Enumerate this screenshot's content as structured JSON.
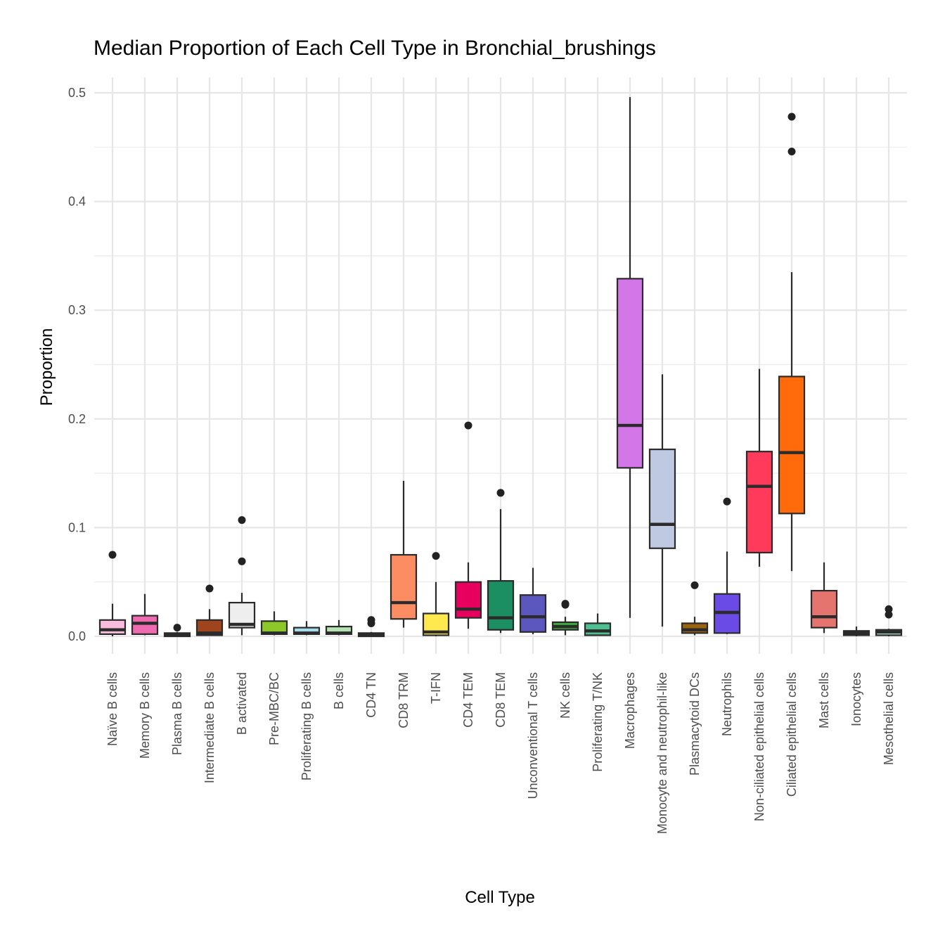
{
  "chart_data": {
    "type": "box",
    "title": "Median Proportion of Each Cell Type in Bronchial_brushings",
    "xlabel": "Cell Type",
    "ylabel": "Proportion",
    "ylim": [
      -0.025,
      0.51
    ],
    "yticks": [
      0.0,
      0.1,
      0.2,
      0.3,
      0.4,
      0.5
    ],
    "ytick_labels": [
      "0.0",
      "0.1",
      "0.2",
      "0.3",
      "0.4",
      "0.5"
    ],
    "grid": true,
    "legend": "none",
    "categories": [
      "Naïve B cells",
      "Memory B cells",
      "Plasma B cells",
      "Intermediate B cells",
      "B activated",
      "Pre-MBC/BC",
      "Proliferating B cells",
      "B cells",
      "CD4 TN",
      "CD8 TRM",
      "T-IFN",
      "CD4 TEM",
      "CD8 TEM",
      "Unconventional T cells",
      "NK cells",
      "Proliferating T/NK",
      "Macrophages",
      "Monocyte and neutrophil-like",
      "Plasmacytoid DCs",
      "Neutrophils",
      "Non-ciliated epithelial cells",
      "Ciliated epithelial cells",
      "Mast cells",
      "Ionocytes",
      "Mesothelial cells"
    ],
    "boxes": [
      {
        "name": "Naïve B cells",
        "low": 0.0,
        "q1": 0.002,
        "median": 0.006,
        "q3": 0.015,
        "high": 0.03,
        "outliers": [
          0.075
        ],
        "color": "#F9BCDD"
      },
      {
        "name": "Memory B cells",
        "low": 0.001,
        "q1": 0.002,
        "median": 0.012,
        "q3": 0.019,
        "high": 0.039,
        "outliers": [],
        "color": "#F06AB0"
      },
      {
        "name": "Plasma B cells",
        "low": 0.0,
        "q1": 0.0,
        "median": 0.001,
        "q3": 0.003,
        "high": 0.004,
        "outliers": [
          0.008
        ],
        "color": "#7A3E9D"
      },
      {
        "name": "Intermediate B cells",
        "low": 0.001,
        "q1": 0.001,
        "median": 0.003,
        "q3": 0.015,
        "high": 0.025,
        "outliers": [
          0.044
        ],
        "color": "#A0441E"
      },
      {
        "name": "B activated",
        "low": 0.001,
        "q1": 0.008,
        "median": 0.011,
        "q3": 0.031,
        "high": 0.04,
        "outliers": [
          0.069,
          0.107
        ],
        "color": "#EEEEEE"
      },
      {
        "name": "Pre-MBC/BC",
        "low": 0.001,
        "q1": 0.002,
        "median": 0.003,
        "q3": 0.014,
        "high": 0.023,
        "outliers": [],
        "color": "#8DC82A"
      },
      {
        "name": "Proliferating B cells",
        "low": 0.001,
        "q1": 0.002,
        "median": 0.003,
        "q3": 0.008,
        "high": 0.014,
        "outliers": [],
        "color": "#A6DCEB"
      },
      {
        "name": "B cells",
        "low": 0.001,
        "q1": 0.002,
        "median": 0.003,
        "q3": 0.009,
        "high": 0.015,
        "outliers": [],
        "color": "#B5E3B1"
      },
      {
        "name": "CD4 TN",
        "low": 0.0,
        "q1": 0.0,
        "median": 0.001,
        "q3": 0.003,
        "high": 0.004,
        "outliers": [
          0.012,
          0.015
        ],
        "color": "#3B3B3B"
      },
      {
        "name": "CD8 TRM",
        "low": 0.008,
        "q1": 0.016,
        "median": 0.031,
        "q3": 0.075,
        "high": 0.143,
        "outliers": [],
        "color": "#FC8D62"
      },
      {
        "name": "T-IFN",
        "low": 0.0,
        "q1": 0.001,
        "median": 0.004,
        "q3": 0.021,
        "high": 0.05,
        "outliers": [
          0.074
        ],
        "color": "#FFE94F"
      },
      {
        "name": "CD4 TEM",
        "low": 0.007,
        "q1": 0.017,
        "median": 0.025,
        "q3": 0.05,
        "high": 0.068,
        "outliers": [
          0.194
        ],
        "color": "#E8005F"
      },
      {
        "name": "CD8 TEM",
        "low": 0.003,
        "q1": 0.006,
        "median": 0.017,
        "q3": 0.051,
        "high": 0.117,
        "outliers": [
          0.132
        ],
        "color": "#1B8E62"
      },
      {
        "name": "Unconventional T cells",
        "low": 0.002,
        "q1": 0.004,
        "median": 0.018,
        "q3": 0.038,
        "high": 0.063,
        "outliers": [],
        "color": "#5B57BE"
      },
      {
        "name": "NK cells",
        "low": 0.001,
        "q1": 0.006,
        "median": 0.009,
        "q3": 0.013,
        "high": 0.018,
        "outliers": [
          0.029,
          0.03
        ],
        "color": "#3BAA3B"
      },
      {
        "name": "Proliferating T/NK",
        "low": 0.001,
        "q1": 0.001,
        "median": 0.005,
        "q3": 0.012,
        "high": 0.021,
        "outliers": [],
        "color": "#4DBF91"
      },
      {
        "name": "Macrophages",
        "low": 0.017,
        "q1": 0.155,
        "median": 0.194,
        "q3": 0.329,
        "high": 0.496,
        "outliers": [],
        "color": "#D276E8"
      },
      {
        "name": "Monocyte and neutrophil-like",
        "low": 0.009,
        "q1": 0.081,
        "median": 0.103,
        "q3": 0.172,
        "high": 0.241,
        "outliers": [],
        "color": "#BFC9E2"
      },
      {
        "name": "Plasmacytoid DCs",
        "low": 0.001,
        "q1": 0.003,
        "median": 0.006,
        "q3": 0.012,
        "high": 0.018,
        "outliers": [
          0.047
        ],
        "color": "#9A6410"
      },
      {
        "name": "Neutrophils",
        "low": 0.002,
        "q1": 0.003,
        "median": 0.022,
        "q3": 0.039,
        "high": 0.078,
        "outliers": [
          0.124
        ],
        "color": "#6A4BE6"
      },
      {
        "name": "Non-ciliated epithelial cells",
        "low": 0.064,
        "q1": 0.077,
        "median": 0.138,
        "q3": 0.17,
        "high": 0.246,
        "outliers": [],
        "color": "#FF3A5B"
      },
      {
        "name": "Ciliated epithelial cells",
        "low": 0.06,
        "q1": 0.113,
        "median": 0.169,
        "q3": 0.239,
        "high": 0.335,
        "outliers": [
          0.446,
          0.478
        ],
        "color": "#FF6A0A"
      },
      {
        "name": "Mast cells",
        "low": 0.003,
        "q1": 0.008,
        "median": 0.018,
        "q3": 0.042,
        "high": 0.068,
        "outliers": [],
        "color": "#E5736E"
      },
      {
        "name": "Ionocytes",
        "low": 0.0,
        "q1": 0.001,
        "median": 0.002,
        "q3": 0.005,
        "high": 0.009,
        "outliers": [],
        "color": "#2B2B2B"
      },
      {
        "name": "Mesothelial cells",
        "low": 0.0,
        "q1": 0.001,
        "median": 0.004,
        "q3": 0.006,
        "high": 0.007,
        "outliers": [
          0.02,
          0.025
        ],
        "color": "#A8D8C8"
      }
    ]
  }
}
